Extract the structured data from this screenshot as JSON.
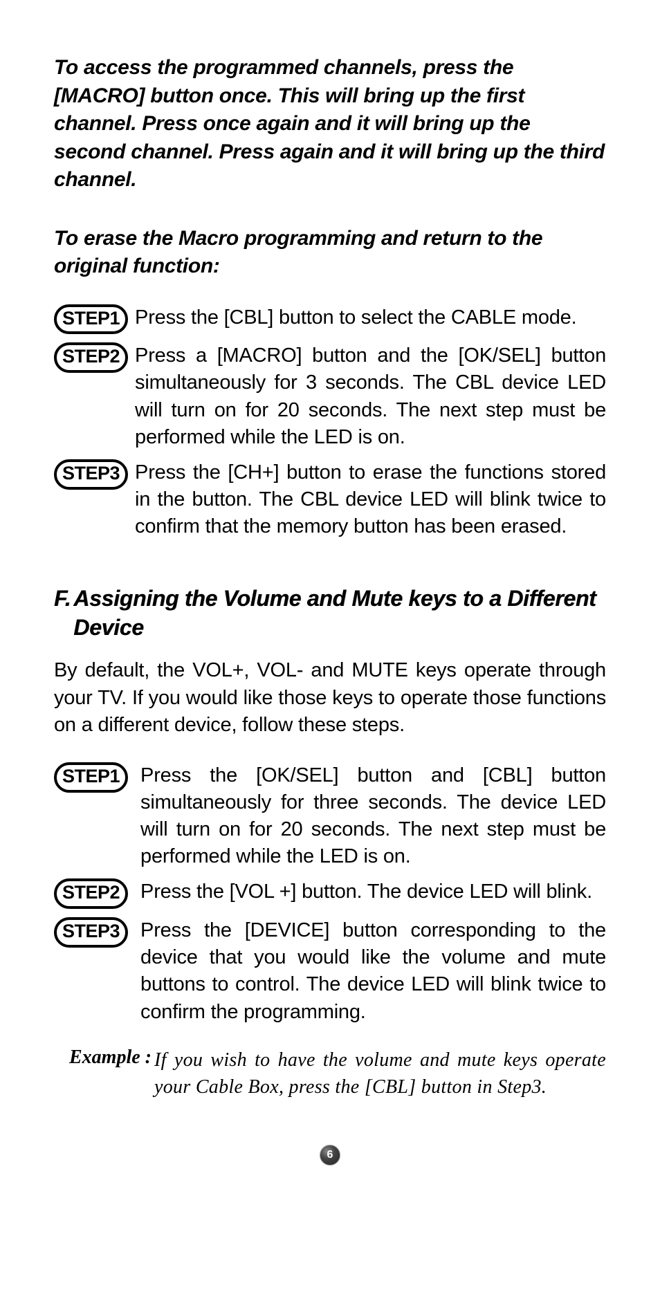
{
  "intro": "To access the programmed channels, press the [MACRO] button once. This will bring up the first channel. Press once again and it will bring up the second channel. Press again and it will bring up the third channel.",
  "subheading": "To erase the Macro programming and return to the original function:",
  "stepsA": [
    {
      "label": "STEP1",
      "text": "Press the [CBL] button to select the CABLE mode."
    },
    {
      "label": "STEP2",
      "text": "Press a [MACRO] button and the [OK/SEL] button simultaneously for 3 seconds. The CBL device LED will turn on for 20 seconds. The next step must be performed while the LED is on."
    },
    {
      "label": "STEP3",
      "text": "Press the [CH+] button to erase the functions stored in the button. The CBL device LED will blink twice to confirm that the memory button has been erased."
    }
  ],
  "sectionF": {
    "prefix": "F.",
    "title": "Assigning the Volume and Mute keys to a Different Device",
    "body": "By default, the VOL+, VOL- and MUTE keys operate through your TV. If you would like those keys to operate those functions on a different device, follow these steps."
  },
  "stepsB": [
    {
      "label": "STEP1",
      "text": "Press the [OK/SEL] button and [CBL] button simultaneously for three seconds. The device LED will turn on for 20 seconds. The next step must be performed while the LED is on."
    },
    {
      "label": "STEP2",
      "text": "Press the [VOL +] button. The device LED will blink."
    },
    {
      "label": "STEP3",
      "text": "Press the [DEVICE] button corresponding to the device that you would like the volume and mute buttons to control. The device LED will blink twice to confirm the programming."
    }
  ],
  "example": {
    "label": "Example :",
    "text": "If you wish to have the volume and mute keys operate your Cable Box, press the [CBL] button in Step3."
  },
  "pageNumber": "6"
}
